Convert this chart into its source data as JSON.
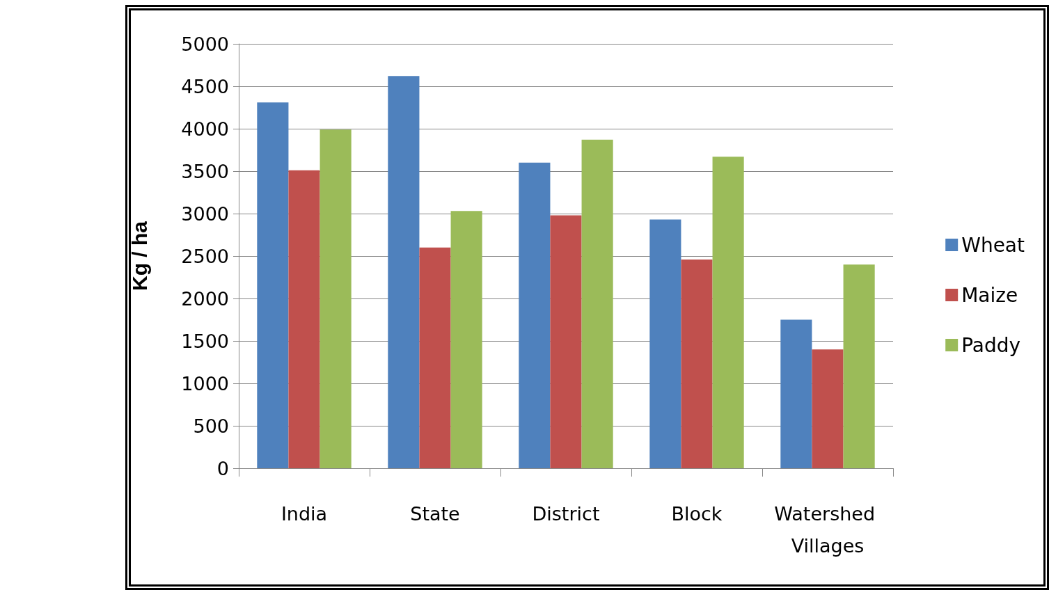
{
  "chart_data": {
    "type": "bar",
    "ylabel": "Kg / ha",
    "categories": [
      "India",
      "State",
      "District",
      "Block",
      "Watershed Villages"
    ],
    "series": [
      {
        "name": "Wheat",
        "color": "#4f81bd",
        "values": [
          4310,
          4620,
          3600,
          2930,
          1750
        ]
      },
      {
        "name": "Maize",
        "color": "#c0504d",
        "values": [
          3510,
          2600,
          2980,
          2460,
          1400
        ]
      },
      {
        "name": "Paddy",
        "color": "#9bbb59",
        "values": [
          3990,
          3030,
          3870,
          3670,
          2400
        ]
      }
    ],
    "ylim": [
      0,
      5000
    ],
    "yticks": [
      0,
      500,
      1000,
      1500,
      2000,
      2500,
      3000,
      3500,
      4000,
      4500,
      5000
    ],
    "grid": "y",
    "legend": "right"
  }
}
